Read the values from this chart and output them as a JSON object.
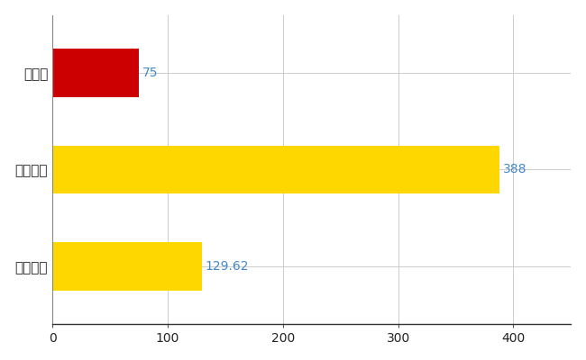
{
  "categories": [
    "全国平均",
    "全国最大",
    "島根県"
  ],
  "values": [
    129.62,
    388,
    75
  ],
  "bar_colors": [
    "#FFD700",
    "#FFD700",
    "#CC0000"
  ],
  "value_labels": [
    "129.62",
    "388",
    "75"
  ],
  "xlim": [
    0,
    450
  ],
  "xticks": [
    0,
    100,
    200,
    300,
    400
  ],
  "bar_height": 0.5,
  "label_color": "#4488CC",
  "grid_color": "#CCCCCC",
  "background_color": "#FFFFFF",
  "label_fontsize": 10,
  "tick_fontsize": 10,
  "ylabel_fontsize": 11
}
